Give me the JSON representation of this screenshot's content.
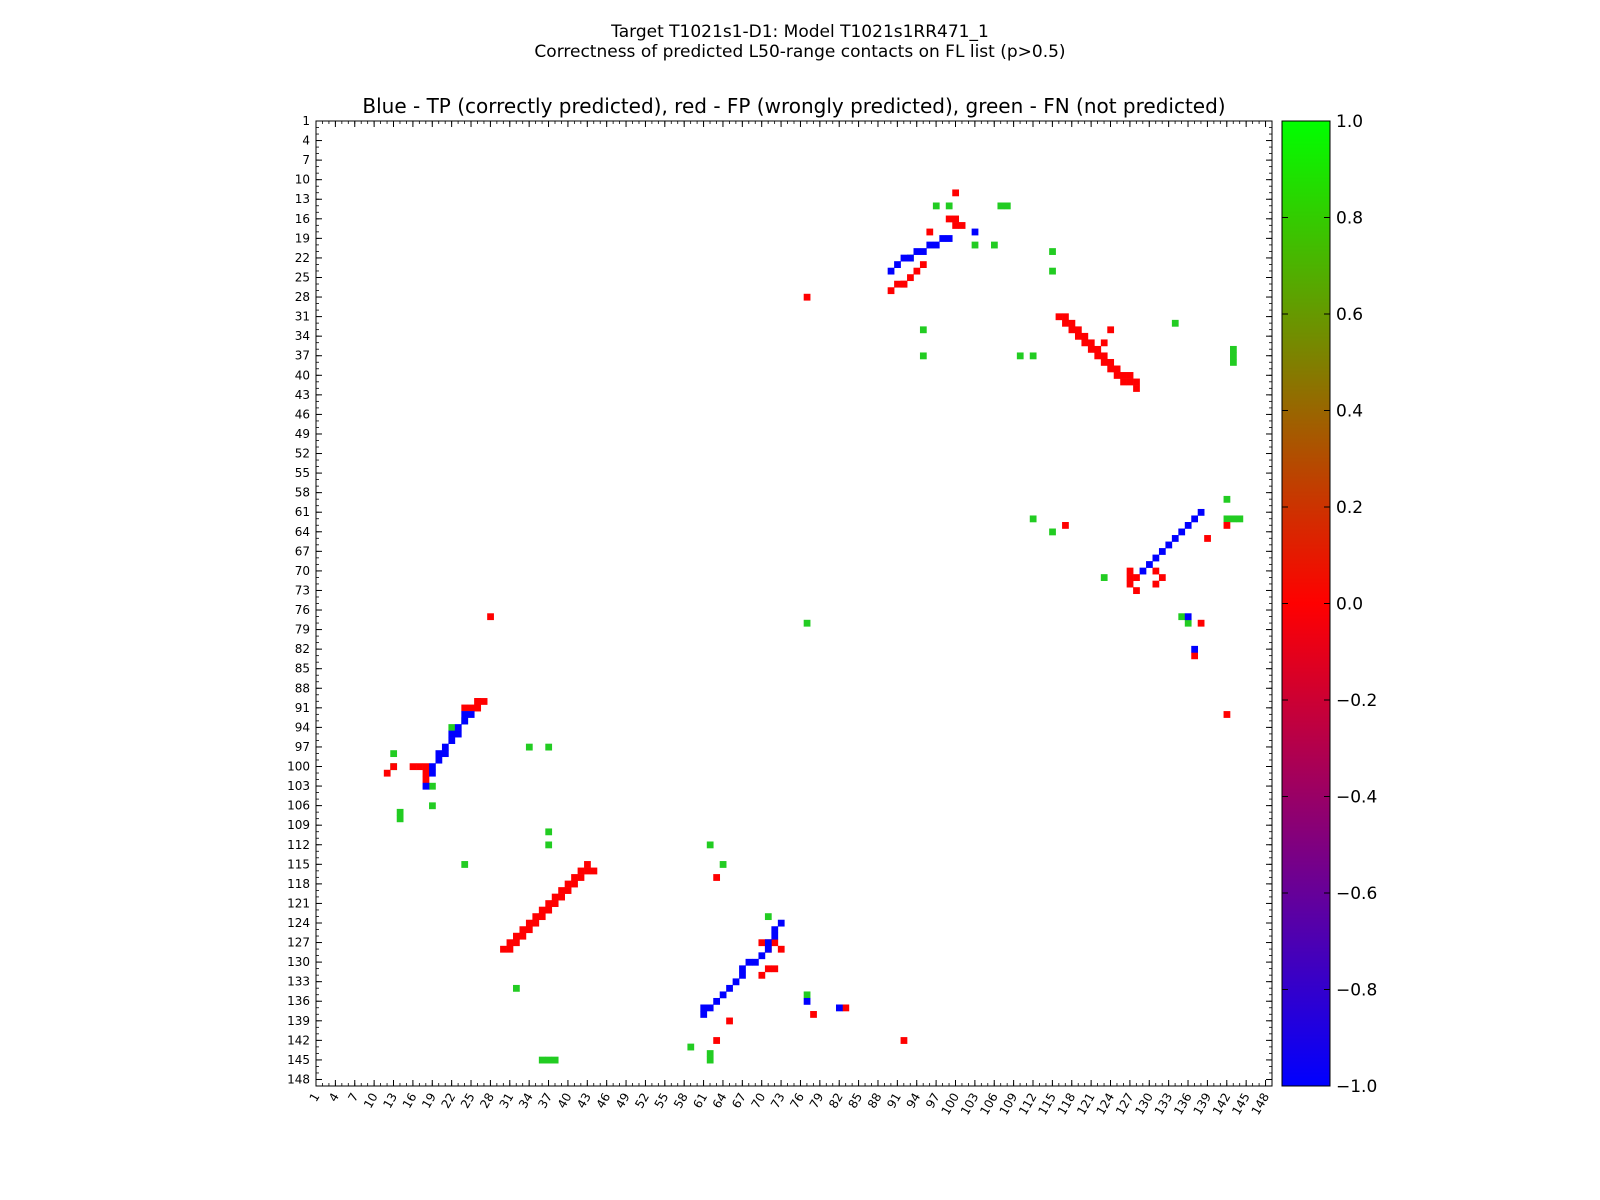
{
  "suptitle_line1": "Target T1021s1-D1: Model T1021s1RR471_1",
  "suptitle_line2": "Correctness of predicted L50-range contacts on FL list (p>0.5)",
  "colors": {
    "tp": "#0000ff",
    "fp": "#ff0000",
    "fn": "#22cc22"
  },
  "chart_data": {
    "type": "heatmap",
    "title": "Blue - TP (correctly predicted), red - FP (wrongly predicted), green - FN (not predicted)",
    "xlim": [
      1,
      149
    ],
    "ylim": [
      1,
      149
    ],
    "x_tick_labels": [
      "1",
      "4",
      "7",
      "10",
      "13",
      "16",
      "19",
      "22",
      "25",
      "28",
      "31",
      "34",
      "37",
      "40",
      "43",
      "46",
      "49",
      "52",
      "55",
      "58",
      "61",
      "64",
      "67",
      "70",
      "73",
      "76",
      "79",
      "82",
      "85",
      "88",
      "91",
      "94",
      "97",
      "100",
      "103",
      "106",
      "109",
      "112",
      "115",
      "118",
      "121",
      "124",
      "127",
      "130",
      "133",
      "136",
      "139",
      "142",
      "145",
      "148"
    ],
    "y_tick_labels": [
      "1",
      "4",
      "7",
      "10",
      "13",
      "16",
      "19",
      "22",
      "25",
      "28",
      "31",
      "34",
      "37",
      "40",
      "43",
      "46",
      "49",
      "52",
      "55",
      "58",
      "61",
      "64",
      "67",
      "70",
      "73",
      "76",
      "79",
      "82",
      "85",
      "88",
      "91",
      "94",
      "97",
      "100",
      "103",
      "106",
      "109",
      "112",
      "115",
      "118",
      "121",
      "124",
      "127",
      "130",
      "133",
      "136",
      "139",
      "142",
      "145",
      "148"
    ],
    "colorbar": {
      "min": -1.0,
      "max": 1.0,
      "ticks": [
        "1.0",
        "0.8",
        "0.6",
        "0.4",
        "0.2",
        "0.0",
        "−0.2",
        "−0.4",
        "−0.6",
        "−0.8",
        "−1.0"
      ]
    },
    "legend": {
      "tp": -1.0,
      "fp": 0.0,
      "fn": 1.0
    },
    "cells_tp": [
      [
        19,
        101
      ],
      [
        19,
        100
      ],
      [
        20,
        99
      ],
      [
        20,
        98
      ],
      [
        21,
        98
      ],
      [
        21,
        97
      ],
      [
        22,
        96
      ],
      [
        22,
        95
      ],
      [
        23,
        95
      ],
      [
        23,
        94
      ],
      [
        24,
        93
      ],
      [
        24,
        92
      ],
      [
        25,
        92
      ],
      [
        99,
        19
      ],
      [
        98,
        19
      ],
      [
        97,
        20
      ],
      [
        96,
        20
      ],
      [
        95,
        21
      ],
      [
        94,
        21
      ],
      [
        93,
        22
      ],
      [
        92,
        22
      ],
      [
        91,
        23
      ],
      [
        90,
        24
      ],
      [
        138,
        61
      ],
      [
        137,
        62
      ],
      [
        136,
        63
      ],
      [
        135,
        64
      ],
      [
        134,
        65
      ],
      [
        133,
        66
      ],
      [
        132,
        67
      ],
      [
        131,
        68
      ],
      [
        130,
        69
      ],
      [
        129,
        70
      ],
      [
        61,
        138
      ],
      [
        61,
        137
      ],
      [
        62,
        137
      ],
      [
        63,
        136
      ],
      [
        64,
        135
      ],
      [
        65,
        134
      ],
      [
        66,
        133
      ],
      [
        67,
        132
      ],
      [
        67,
        131
      ],
      [
        68,
        130
      ],
      [
        69,
        130
      ],
      [
        70,
        129
      ],
      [
        71,
        128
      ],
      [
        71,
        127
      ],
      [
        72,
        126
      ],
      [
        72,
        125
      ],
      [
        73,
        124
      ],
      [
        18,
        103
      ],
      [
        103,
        18
      ],
      [
        136,
        77
      ],
      [
        137,
        82
      ],
      [
        77,
        136
      ],
      [
        82,
        137
      ]
    ],
    "cells_fp": [
      [
        18,
        100
      ],
      [
        18,
        101
      ],
      [
        18,
        102
      ],
      [
        17,
        100
      ],
      [
        24,
        91
      ],
      [
        25,
        91
      ],
      [
        26,
        90
      ],
      [
        26,
        91
      ],
      [
        27,
        90
      ],
      [
        12,
        101
      ],
      [
        13,
        100
      ],
      [
        99,
        16
      ],
      [
        100,
        17
      ],
      [
        101,
        17
      ],
      [
        96,
        18
      ],
      [
        95,
        23
      ],
      [
        94,
        24
      ],
      [
        93,
        25
      ],
      [
        92,
        26
      ],
      [
        91,
        26
      ],
      [
        90,
        27
      ],
      [
        92,
        26
      ],
      [
        100,
        12
      ],
      [
        28,
        77
      ],
      [
        77,
        28
      ],
      [
        31,
        128
      ],
      [
        32,
        127
      ],
      [
        33,
        126
      ],
      [
        34,
        125
      ],
      [
        35,
        124
      ],
      [
        36,
        123
      ],
      [
        37,
        122
      ],
      [
        38,
        121
      ],
      [
        39,
        120
      ],
      [
        40,
        119
      ],
      [
        41,
        118
      ],
      [
        42,
        117
      ],
      [
        43,
        116
      ],
      [
        44,
        116
      ],
      [
        30,
        128
      ],
      [
        31,
        127
      ],
      [
        32,
        126
      ],
      [
        33,
        125
      ],
      [
        34,
        124
      ],
      [
        35,
        123
      ],
      [
        36,
        122
      ],
      [
        37,
        121
      ],
      [
        38,
        120
      ],
      [
        39,
        119
      ],
      [
        40,
        118
      ],
      [
        41,
        117
      ],
      [
        42,
        116
      ],
      [
        43,
        115
      ],
      [
        117,
        31
      ],
      [
        118,
        32
      ],
      [
        119,
        33
      ],
      [
        120,
        34
      ],
      [
        121,
        35
      ],
      [
        122,
        36
      ],
      [
        123,
        37
      ],
      [
        124,
        38
      ],
      [
        125,
        39
      ],
      [
        126,
        40
      ],
      [
        127,
        40
      ],
      [
        128,
        41
      ],
      [
        116,
        31
      ],
      [
        117,
        32
      ],
      [
        118,
        33
      ],
      [
        119,
        34
      ],
      [
        120,
        35
      ],
      [
        121,
        36
      ],
      [
        122,
        37
      ],
      [
        123,
        38
      ],
      [
        124,
        39
      ],
      [
        125,
        40
      ],
      [
        126,
        41
      ],
      [
        127,
        41
      ],
      [
        128,
        42
      ],
      [
        70,
        132
      ],
      [
        71,
        131
      ],
      [
        72,
        131
      ],
      [
        70,
        127
      ],
      [
        71,
        127
      ],
      [
        72,
        127
      ],
      [
        73,
        128
      ],
      [
        71,
        128
      ],
      [
        131,
        70
      ],
      [
        132,
        71
      ],
      [
        131,
        72
      ],
      [
        127,
        70
      ],
      [
        127,
        71
      ],
      [
        127,
        72
      ],
      [
        128,
        73
      ],
      [
        128,
        71
      ],
      [
        63,
        117
      ],
      [
        117,
        63
      ],
      [
        65,
        139
      ],
      [
        139,
        65
      ],
      [
        83,
        137
      ],
      [
        137,
        83
      ],
      [
        100,
        16
      ],
      [
        16,
        100
      ],
      [
        78,
        138
      ],
      [
        138,
        78
      ],
      [
        92,
        142
      ],
      [
        142,
        92
      ],
      [
        26,
        90
      ],
      [
        26,
        91
      ],
      [
        63,
        142
      ],
      [
        142,
        63
      ],
      [
        123,
        35
      ],
      [
        124,
        33
      ]
    ],
    "cells_fn": [
      [
        24,
        93
      ],
      [
        22,
        94
      ],
      [
        19,
        103
      ],
      [
        19,
        106
      ],
      [
        14,
        107
      ],
      [
        14,
        108
      ],
      [
        13,
        100
      ],
      [
        13,
        98
      ],
      [
        34,
        97
      ],
      [
        37,
        97
      ],
      [
        37,
        110
      ],
      [
        37,
        112
      ],
      [
        24,
        115
      ],
      [
        32,
        134
      ],
      [
        37,
        145
      ],
      [
        36,
        145
      ],
      [
        38,
        145
      ],
      [
        62,
        112
      ],
      [
        64,
        115
      ],
      [
        59,
        143
      ],
      [
        62,
        144
      ],
      [
        62,
        145
      ],
      [
        71,
        123
      ],
      [
        77,
        135
      ],
      [
        77,
        78
      ],
      [
        95,
        33
      ],
      [
        95,
        37
      ],
      [
        97,
        14
      ],
      [
        99,
        14
      ],
      [
        103,
        20
      ],
      [
        106,
        20
      ],
      [
        108,
        14
      ],
      [
        107,
        14
      ],
      [
        110,
        37
      ],
      [
        112,
        37
      ],
      [
        112,
        62
      ],
      [
        115,
        24
      ],
      [
        115,
        64
      ],
      [
        123,
        71
      ],
      [
        135,
        77
      ],
      [
        134,
        32
      ],
      [
        136,
        78
      ],
      [
        143,
        36
      ],
      [
        143,
        37
      ],
      [
        143,
        38
      ],
      [
        142,
        59
      ],
      [
        142,
        62
      ],
      [
        143,
        62
      ],
      [
        144,
        62
      ],
      [
        93,
        22
      ],
      [
        115,
        21
      ]
    ]
  }
}
